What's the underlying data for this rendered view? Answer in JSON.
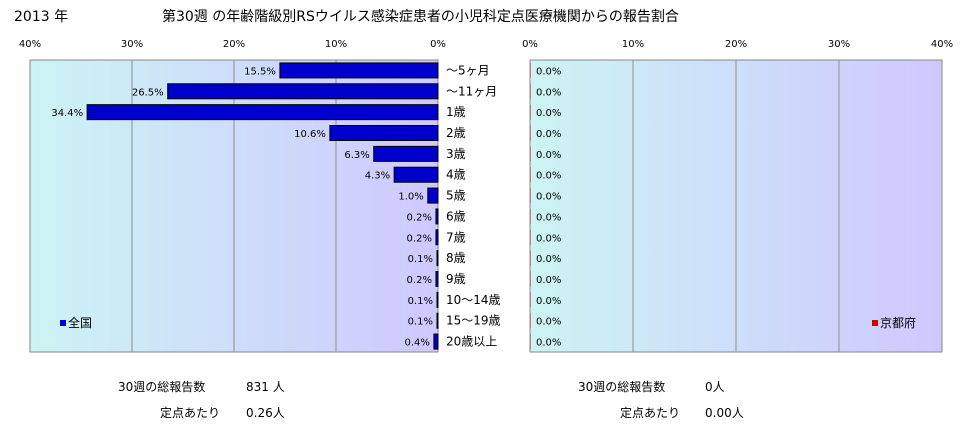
{
  "header": {
    "year": "2013 年",
    "title": "第30週 の年齢階級別RSウイルス感染症患者の小児科定点医療機関からの報告割合"
  },
  "chart_data": [
    {
      "type": "bar",
      "orientation": "horizontal",
      "legend": "全国",
      "legend_color": "#0000cc",
      "bar_color": "#0000cc",
      "xlim": [
        0,
        40
      ],
      "x_direction": "reversed",
      "tick_labels": [
        "40%",
        "30%",
        "20%",
        "10%",
        "0%"
      ],
      "categories": [
        "～5ヶ月",
        "～11ヶ月",
        "1歳",
        "2歳",
        "3歳",
        "4歳",
        "5歳",
        "6歳",
        "7歳",
        "8歳",
        "9歳",
        "10～14歳",
        "15～19歳",
        "20歳以上"
      ],
      "values": [
        15.5,
        26.5,
        34.4,
        10.6,
        6.3,
        4.3,
        1.0,
        0.2,
        0.2,
        0.1,
        0.2,
        0.1,
        0.1,
        0.4
      ],
      "value_labels": [
        "15.5%",
        "26.5%",
        "34.4%",
        "10.6%",
        "6.3%",
        "4.3%",
        "1.0%",
        "0.2%",
        "0.2%",
        "0.1%",
        "0.2%",
        "0.1%",
        "0.1%",
        "0.4%"
      ],
      "grid": true
    },
    {
      "type": "bar",
      "orientation": "horizontal",
      "legend": "京都府",
      "legend_color": "#cc0000",
      "bar_color": "#cc0000",
      "xlim": [
        0,
        40
      ],
      "tick_labels": [
        "0%",
        "10%",
        "20%",
        "30%",
        "40%"
      ],
      "values": [
        0,
        0,
        0,
        0,
        0,
        0,
        0,
        0,
        0,
        0,
        0,
        0,
        0,
        0
      ],
      "value_labels": [
        "0.0%",
        "0.0%",
        "0.0%",
        "0.0%",
        "0.0%",
        "0.0%",
        "0.0%",
        "0.0%",
        "0.0%",
        "0.0%",
        "0.0%",
        "0.0%",
        "0.0%",
        "0.0%"
      ],
      "grid": true
    }
  ],
  "footer": {
    "national_total_label": "30週の総報告数",
    "national_total_value": "831 人",
    "national_per_label": "定点あたり",
    "national_per_value": "0.26人",
    "kyoto_total_label": "30週の総報告数",
    "kyoto_total_value": "0人",
    "kyoto_per_label": "定点あたり",
    "kyoto_per_value": "0.00人"
  }
}
